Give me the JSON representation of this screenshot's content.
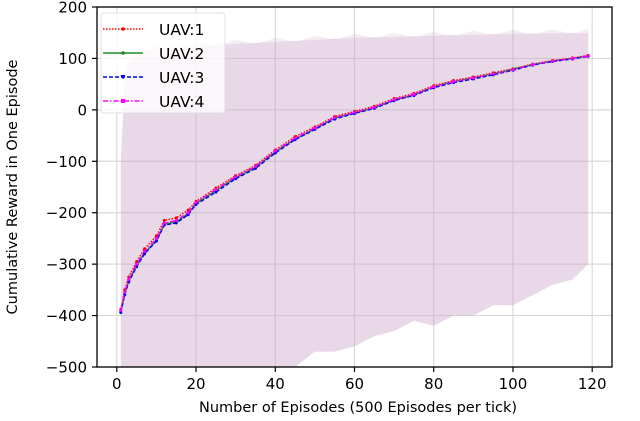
{
  "chart_data": {
    "type": "line",
    "title": "",
    "xlabel": "Number of Episodes (500 Episodes per tick)",
    "ylabel": "Cumulative Reward in One Episode",
    "xlim": [
      -5,
      125
    ],
    "ylim": [
      -500,
      200
    ],
    "xticks": [
      0,
      20,
      40,
      60,
      80,
      100,
      120
    ],
    "yticks": [
      -500,
      -400,
      -300,
      -200,
      -100,
      0,
      100,
      200
    ],
    "grid": true,
    "legend_position": "upper left",
    "x": [
      1,
      2,
      3,
      5,
      7,
      10,
      12,
      15,
      18,
      20,
      25,
      30,
      35,
      40,
      45,
      50,
      55,
      60,
      65,
      70,
      75,
      80,
      85,
      90,
      95,
      100,
      105,
      110,
      115,
      119
    ],
    "series": [
      {
        "name": "UAV:1",
        "color": "#ff0000",
        "style": "dotted",
        "marker": "dot",
        "values": [
          -388,
          -350,
          -325,
          -295,
          -270,
          -245,
          -215,
          -210,
          -195,
          -178,
          -152,
          -128,
          -108,
          -78,
          -52,
          -33,
          -13,
          -3,
          7,
          22,
          32,
          47,
          57,
          64,
          72,
          80,
          89,
          96,
          101,
          106
        ]
      },
      {
        "name": "UAV:2",
        "color": "#228b22",
        "style": "solid",
        "marker": "dot",
        "values": [
          -392,
          -358,
          -333,
          -303,
          -278,
          -255,
          -222,
          -218,
          -202,
          -182,
          -157,
          -132,
          -112,
          -82,
          -57,
          -37,
          -16,
          -6,
          4,
          19,
          29,
          45,
          55,
          62,
          70,
          79,
          88,
          95,
          100,
          105
        ]
      },
      {
        "name": "UAV:3",
        "color": "#0000ff",
        "style": "dashed",
        "marker": "triangle-down",
        "values": [
          -394,
          -360,
          -335,
          -305,
          -280,
          -255,
          -224,
          -220,
          -204,
          -184,
          -160,
          -134,
          -114,
          -84,
          -58,
          -38,
          -18,
          -7,
          3,
          18,
          28,
          43,
          53,
          60,
          68,
          77,
          87,
          94,
          99,
          104
        ]
      },
      {
        "name": "UAV:4",
        "color": "#ff00ff",
        "style": "dashdot",
        "marker": "square",
        "values": [
          -390,
          -355,
          -330,
          -300,
          -275,
          -250,
          -220,
          -215,
          -200,
          -180,
          -155,
          -130,
          -110,
          -80,
          -55,
          -35,
          -15,
          -5,
          5,
          20,
          30,
          45,
          55,
          62,
          70,
          78,
          88,
          95,
          100,
          105
        ]
      }
    ],
    "confidence_band": {
      "color": "#c9a3c9",
      "upper": [
        -100,
        60,
        90,
        105,
        115,
        118,
        120,
        122,
        123,
        124,
        126,
        128,
        130,
        132,
        134,
        136,
        138,
        140,
        141,
        142,
        143,
        144,
        145,
        146,
        147,
        148,
        148,
        149,
        149,
        149
      ],
      "lower": [
        -500,
        -500,
        -500,
        -500,
        -500,
        -500,
        -500,
        -500,
        -500,
        -500,
        -500,
        -500,
        -500,
        -500,
        -500,
        -470,
        -470,
        -460,
        -440,
        -430,
        -410,
        -420,
        -400,
        -400,
        -380,
        -380,
        -360,
        -340,
        -330,
        -300
      ]
    }
  }
}
